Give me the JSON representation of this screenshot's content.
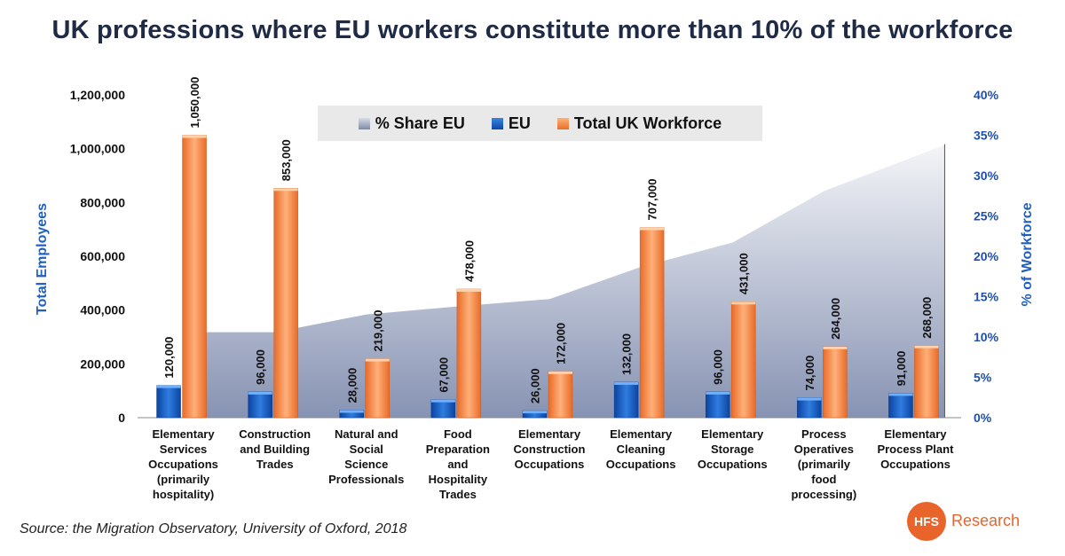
{
  "title": "UK professions where EU workers constitute more than 10% of the workforce",
  "source": "Source: the Migration Observatory, University of Oxford, 2018",
  "logo": {
    "mark": "HFS",
    "text": "Research",
    "color": "#e8642b"
  },
  "chart_data": {
    "type": "bar",
    "title": "UK professions where EU workers constitute more than 10% of the workforce",
    "ylabel": "Total Employees",
    "y2label": "% of Workforce",
    "ylim": [
      0,
      1200000
    ],
    "y2lim": [
      0,
      40
    ],
    "yticks": [
      "0",
      "200,000",
      "400,000",
      "600,000",
      "800,000",
      "1,000,000",
      "1,200,000"
    ],
    "y2ticks": [
      "0%",
      "5%",
      "10%",
      "15%",
      "20%",
      "25%",
      "30%",
      "35%",
      "40%"
    ],
    "categories": [
      [
        "Elementary",
        "Services",
        "Occupations",
        "(primarily",
        "hospitality)"
      ],
      [
        "Construction",
        "and Building",
        "Trades"
      ],
      [
        "Natural and",
        "Social",
        "Science",
        "Professionals"
      ],
      [
        "Food",
        "Preparation",
        "and",
        "Hospitality",
        "Trades"
      ],
      [
        "Elementary",
        "Construction",
        "Occupations"
      ],
      [
        "Elementary",
        "Cleaning",
        "Occupations"
      ],
      [
        "Elementary",
        "Storage",
        "Occupations"
      ],
      [
        "Process",
        "Operatives",
        "(primarily",
        "food",
        "processing)"
      ],
      [
        "Elementary",
        "Process Plant",
        "Occupations"
      ]
    ],
    "legend": [
      "% Share EU",
      "EU",
      "Total UK Workforce"
    ],
    "legend_position": "top-center",
    "series": [
      {
        "name": "EU",
        "type": "bar",
        "axis": "left",
        "color": "#1556c0",
        "values": [
          120000,
          96000,
          28000,
          67000,
          26000,
          132000,
          96000,
          74000,
          91000
        ],
        "labels": [
          "120,000",
          "96,000",
          "28,000",
          "67,000",
          "26,000",
          "132,000",
          "96,000",
          "74,000",
          "91,000"
        ]
      },
      {
        "name": "Total UK Workforce",
        "type": "bar",
        "axis": "left",
        "color": "#f28a45",
        "values": [
          1050000,
          853000,
          219000,
          478000,
          172000,
          707000,
          431000,
          264000,
          268000
        ],
        "labels": [
          "1,050,000",
          "853,000",
          "219,000",
          "478,000",
          "172,000",
          "707,000",
          "431,000",
          "264,000",
          "268,000"
        ]
      },
      {
        "name": "% Share EU",
        "type": "area",
        "axis": "right",
        "color": "#8a95b5",
        "values": [
          10.7,
          10.7,
          12.9,
          13.9,
          14.8,
          18.8,
          21.8,
          28.2,
          33.9
        ]
      }
    ]
  }
}
